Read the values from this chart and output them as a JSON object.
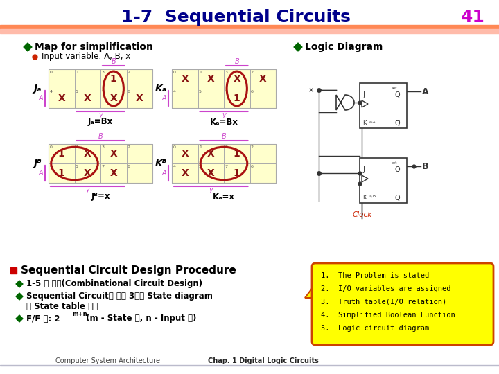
{
  "title": "1-7  Sequential Circuits",
  "page_num": "41",
  "title_color": "#00008B",
  "page_num_color": "#CC00CC",
  "bg_color": "#FFFFFF",
  "diamond_color": "#006600",
  "map_bg": "#FFFFCC",
  "oval_color": "#AA1111",
  "brace_color": "#CC44CC",
  "callout_bg": "#FFFF00",
  "callout_border": "#CC4400",
  "section_title": "Sequential Circuit Design Procedure",
  "bullet1": "1-5 절 참고(Combinational Circuit Design)",
  "bullet2_1": "Sequential Circuit은 절차 3에서 State diagram",
  "bullet2_2": "및 State table 이용",
  "bullet3": "F/F 수: 2m+n (m - State 수, n - Input 수)",
  "callout_lines": [
    "1.  The Problem is stated",
    "2.  I/O variables are assigned",
    "3.  Truth table(I/O relation)",
    "4.  Simplified Boolean Function",
    "5.  Logic circuit diagram"
  ],
  "clock_color": "#CC2200",
  "logic_color": "#333333"
}
